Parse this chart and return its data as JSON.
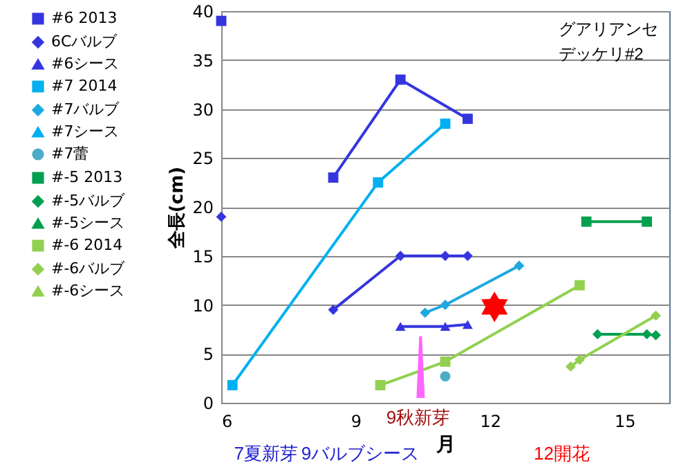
{
  "chart_data": {
    "type": "line",
    "title": "グアリアンセデッケリ#2",
    "xlabel": "月",
    "ylabel": "全長(cm)",
    "xlim": [
      6,
      16
    ],
    "xticks": [
      6,
      9,
      12,
      15
    ],
    "ylim": [
      0,
      40
    ],
    "yticks": [
      0,
      5,
      10,
      15,
      20,
      25,
      30,
      35,
      40
    ],
    "grid": "y",
    "legend": "left",
    "annotations": [
      "7夏新芽",
      "9バルブシース",
      "9秋新芽",
      "12開花"
    ],
    "series": [
      {
        "name": "#6 2013",
        "color": "#3535e0",
        "marker": "square",
        "x": [
          6,
          7.2,
          8.5,
          10,
          11.5
        ],
        "values": [
          39,
          null,
          23,
          33,
          29
        ]
      },
      {
        "name": "6Cバルブ",
        "color": "#3535e0",
        "marker": "diamond",
        "x": [
          6,
          7.2,
          8.5,
          10,
          11,
          11.5
        ],
        "values": [
          19,
          null,
          9.5,
          15,
          15,
          15
        ]
      },
      {
        "name": "#6シース",
        "color": "#3535e0",
        "marker": "triangle",
        "x": [
          10,
          11,
          11.5
        ],
        "values": [
          7.8,
          7.8,
          8
        ]
      },
      {
        "name": "#7 2014",
        "color": "#00b0f0",
        "marker": "square",
        "x": [
          6.25,
          9.5,
          11
        ],
        "values": [
          1.8,
          22.5,
          28.5
        ]
      },
      {
        "name": "#7バルブ",
        "color": "#1ea8e0",
        "marker": "diamond",
        "x": [
          10.55,
          11,
          12.65
        ],
        "values": [
          9.2,
          10,
          14
        ]
      },
      {
        "name": "#7シース",
        "color": "#00b0f0",
        "marker": "triangle"
      },
      {
        "name": "#7蕾",
        "color": "#4bacc6",
        "marker": "circle",
        "x": [
          11
        ],
        "values": [
          2.7
        ]
      },
      {
        "name": "#-5 2013",
        "color": "#00a050",
        "marker": "square",
        "x": [
          14.15,
          15.5
        ],
        "values": [
          18.5,
          18.5
        ]
      },
      {
        "name": "#-5バルブ",
        "color": "#00a050",
        "marker": "diamond",
        "x": [
          14.4,
          15.5,
          15.7
        ],
        "values": [
          7,
          7,
          6.9
        ]
      },
      {
        "name": "#-5シース",
        "color": "#00a050",
        "marker": "triangle"
      },
      {
        "name": "#-6 2014",
        "color": "#92d050",
        "marker": "square",
        "x": [
          9.55,
          11,
          14
        ],
        "values": [
          1.8,
          4.2,
          12
        ]
      },
      {
        "name": "#-6バルブ",
        "color": "#92d050",
        "marker": "diamond",
        "x": [
          13.8,
          14,
          15.7
        ],
        "values": [
          3.7,
          4.4,
          8.9
        ]
      },
      {
        "name": "#-6シース",
        "color": "#92d050",
        "marker": "triangle"
      }
    ]
  }
}
